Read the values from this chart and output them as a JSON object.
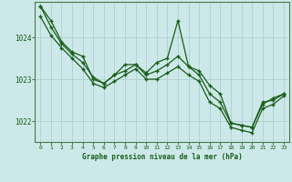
{
  "title": "Graphe pression niveau de la mer (hPa)",
  "bg_color": "#cce8e8",
  "line_color": "#1a5c1a",
  "grid_color": "#aacccc",
  "hours": [
    0,
    1,
    2,
    3,
    4,
    5,
    6,
    7,
    8,
    9,
    10,
    11,
    12,
    13,
    14,
    15,
    16,
    17,
    18,
    19,
    20,
    21,
    22,
    23
  ],
  "line1": [
    1024.75,
    1024.4,
    1023.9,
    1023.65,
    1023.55,
    1023.0,
    1022.9,
    1023.1,
    1023.35,
    1023.35,
    1023.15,
    1023.4,
    1023.5,
    1024.4,
    1023.3,
    1023.2,
    1022.85,
    1022.65,
    1021.95,
    1021.9,
    1021.85,
    1022.45,
    1022.5,
    1022.65
  ],
  "line2": [
    1024.75,
    1024.25,
    1023.85,
    1023.6,
    1023.4,
    1023.05,
    1022.9,
    1023.1,
    1023.2,
    1023.35,
    1023.1,
    1023.2,
    1023.35,
    1023.55,
    1023.3,
    1023.1,
    1022.65,
    1022.45,
    1021.95,
    1021.9,
    1021.85,
    1022.4,
    1022.55,
    1022.65
  ],
  "line3": [
    1024.5,
    1024.05,
    1023.75,
    1023.5,
    1023.25,
    1022.9,
    1022.8,
    1022.95,
    1023.1,
    1023.25,
    1023.0,
    1023.0,
    1023.15,
    1023.3,
    1023.1,
    1022.95,
    1022.45,
    1022.3,
    1021.85,
    1021.78,
    1021.72,
    1022.3,
    1022.4,
    1022.6
  ],
  "ylim": [
    1021.5,
    1024.85
  ],
  "yticks": [
    1022,
    1023,
    1024
  ],
  "xlim": [
    -0.5,
    23.5
  ],
  "xticks": [
    0,
    1,
    2,
    3,
    4,
    5,
    6,
    7,
    8,
    9,
    10,
    11,
    12,
    13,
    14,
    15,
    16,
    17,
    18,
    19,
    20,
    21,
    22,
    23
  ]
}
